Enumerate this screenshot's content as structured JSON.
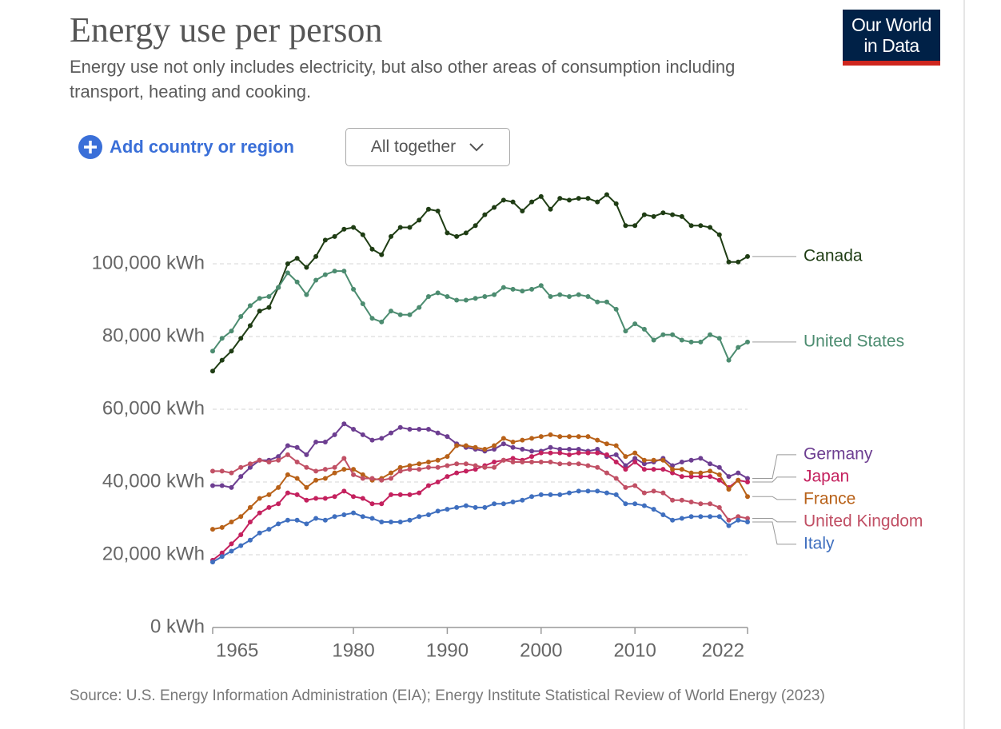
{
  "ui": {
    "logo": "Our World in Data",
    "add_button": "Add country or region",
    "dropdown": "All together"
  },
  "chart_data": {
    "type": "line",
    "title": "Energy use per person",
    "subtitle": "Energy use not only includes electricity, but also other areas of consumption including transport, heating and cooking.",
    "source": "Source: U.S. Energy Information Administration (EIA); Energy Institute Statistical Review of World Energy (2023)",
    "x": [
      1965,
      1966,
      1967,
      1968,
      1969,
      1970,
      1971,
      1972,
      1973,
      1974,
      1975,
      1976,
      1977,
      1978,
      1979,
      1980,
      1981,
      1982,
      1983,
      1984,
      1985,
      1986,
      1987,
      1988,
      1989,
      1990,
      1991,
      1992,
      1993,
      1994,
      1995,
      1996,
      1997,
      1998,
      1999,
      2000,
      2001,
      2002,
      2003,
      2004,
      2005,
      2006,
      2007,
      2008,
      2009,
      2010,
      2011,
      2012,
      2013,
      2014,
      2015,
      2016,
      2017,
      2018,
      2019,
      2020,
      2021,
      2022
    ],
    "xlim": [
      1965,
      2022
    ],
    "xticks": [
      1965,
      1980,
      1990,
      2000,
      2010,
      2022
    ],
    "ylim": [
      0,
      120000
    ],
    "yticks": [
      {
        "value": 0,
        "label": "0 kWh"
      },
      {
        "value": 20000,
        "label": "20,000 kWh"
      },
      {
        "value": 40000,
        "label": "40,000 kWh"
      },
      {
        "value": 60000,
        "label": "60,000 kWh"
      },
      {
        "value": 80000,
        "label": "80,000 kWh"
      },
      {
        "value": 100000,
        "label": "100,000 kWh"
      }
    ],
    "grid": true,
    "series": [
      {
        "name": "Canada",
        "color": "#1f3d14",
        "values": [
          70500,
          73500,
          76000,
          79500,
          83000,
          87000,
          88000,
          93500,
          100000,
          101500,
          99000,
          102000,
          106500,
          107500,
          109500,
          110000,
          108000,
          104000,
          102500,
          107500,
          110000,
          110000,
          112000,
          115000,
          114500,
          108500,
          107500,
          108500,
          110500,
          113500,
          115500,
          117500,
          117000,
          114500,
          117000,
          118500,
          115000,
          118000,
          117500,
          118000,
          118000,
          117000,
          119000,
          116500,
          110500,
          110500,
          113500,
          113000,
          114000,
          113500,
          113000,
          110500,
          110500,
          110000,
          108000,
          100500,
          100500,
          102000
        ]
      },
      {
        "name": "United States",
        "color": "#4c8c70",
        "values": [
          76000,
          79500,
          81500,
          85500,
          88500,
          90500,
          91000,
          93500,
          97500,
          95000,
          91500,
          95500,
          97000,
          98000,
          98000,
          93000,
          89000,
          85000,
          84000,
          87000,
          86000,
          86000,
          88000,
          91000,
          92000,
          91000,
          90000,
          90000,
          90500,
          91000,
          91500,
          93500,
          93000,
          92500,
          93000,
          94000,
          91000,
          91500,
          91000,
          91500,
          91000,
          89500,
          89500,
          87500,
          81500,
          83500,
          82000,
          79000,
          80500,
          80500,
          79000,
          78500,
          78500,
          80500,
          79500,
          73500,
          77000,
          78500
        ]
      },
      {
        "name": "Germany",
        "color": "#6d3e91",
        "values": [
          39000,
          39000,
          38500,
          41500,
          44000,
          46000,
          46000,
          47000,
          50000,
          49500,
          47500,
          51000,
          51000,
          53000,
          56000,
          54500,
          53000,
          51500,
          52000,
          53500,
          55000,
          54500,
          54500,
          54500,
          53500,
          52500,
          50500,
          49500,
          49000,
          48500,
          49000,
          50500,
          49500,
          49000,
          48500,
          48500,
          49500,
          49000,
          49000,
          49000,
          48500,
          49000,
          47000,
          47500,
          44500,
          46500,
          45000,
          45500,
          46500,
          44500,
          45500,
          46000,
          46500,
          45000,
          44000,
          41500,
          42500,
          41000
        ]
      },
      {
        "name": "Japan",
        "color": "#c4215e",
        "values": [
          18500,
          20500,
          23000,
          25500,
          29000,
          31500,
          33000,
          34000,
          37000,
          36500,
          35000,
          35500,
          35500,
          36000,
          37500,
          36000,
          35500,
          34000,
          34000,
          36500,
          36500,
          36500,
          37000,
          39000,
          40000,
          41500,
          42500,
          43000,
          43500,
          44500,
          45500,
          46000,
          46500,
          46000,
          47000,
          48000,
          48000,
          48000,
          47500,
          48000,
          48000,
          48000,
          47500,
          45500,
          43500,
          45500,
          43500,
          43500,
          43500,
          42500,
          41500,
          41500,
          41500,
          41500,
          40500,
          38500,
          40500,
          40000
        ]
      },
      {
        "name": "France",
        "color": "#b86118",
        "values": [
          27000,
          27500,
          29000,
          30500,
          33000,
          35500,
          36500,
          38500,
          42000,
          41000,
          38500,
          40500,
          41000,
          42500,
          43500,
          43500,
          42000,
          40500,
          41000,
          42500,
          44000,
          44500,
          45000,
          45500,
          46000,
          47000,
          50000,
          50000,
          49500,
          49000,
          50000,
          52000,
          51000,
          51500,
          52000,
          52500,
          53000,
          52500,
          52500,
          52500,
          52500,
          51500,
          50500,
          50000,
          47000,
          48000,
          46000,
          46000,
          46000,
          43500,
          43500,
          42500,
          42500,
          43000,
          42000,
          38000,
          40500,
          36000
        ]
      },
      {
        "name": "United Kingdom",
        "color": "#c15065",
        "values": [
          43000,
          43000,
          42500,
          44000,
          45000,
          46000,
          45500,
          46000,
          47500,
          45500,
          44000,
          43000,
          43500,
          44000,
          46500,
          42000,
          41000,
          41000,
          40500,
          41000,
          43000,
          43500,
          43500,
          44000,
          44000,
          44500,
          45000,
          45000,
          44500,
          44000,
          44000,
          46000,
          45500,
          45500,
          45500,
          45500,
          45500,
          45000,
          45000,
          45000,
          44500,
          44000,
          42500,
          41000,
          38500,
          39000,
          37000,
          37500,
          37000,
          35000,
          35000,
          34500,
          34000,
          34000,
          33000,
          29500,
          30500,
          30000
        ]
      },
      {
        "name": "Italy",
        "color": "#3f6fbf",
        "values": [
          18000,
          19500,
          21000,
          22500,
          24000,
          26000,
          27000,
          28500,
          29500,
          29500,
          28500,
          30000,
          29500,
          30500,
          31000,
          31500,
          30500,
          30000,
          29000,
          29000,
          29000,
          29500,
          30500,
          31000,
          32000,
          32500,
          33000,
          33500,
          33000,
          33000,
          34000,
          34000,
          34500,
          35000,
          36000,
          36500,
          36500,
          36500,
          37000,
          37500,
          37500,
          37500,
          37000,
          36500,
          34000,
          34000,
          33500,
          32500,
          31000,
          29500,
          30000,
          30500,
          30500,
          30500,
          30500,
          28000,
          29500,
          29000
        ]
      }
    ]
  }
}
